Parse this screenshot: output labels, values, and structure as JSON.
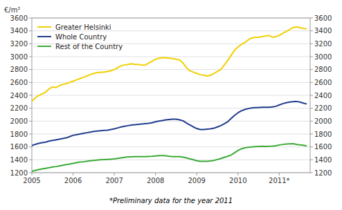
{
  "chart_data": {
    "type": "line",
    "y_label": "€/m²",
    "annotations": [
      "*Preliminary data for the year 2011"
    ],
    "xlim": [
      2005.0,
      2011.75
    ],
    "ylim": [
      1200,
      3600
    ],
    "yticks": [
      1200,
      1400,
      1600,
      1800,
      2000,
      2200,
      2400,
      2600,
      2800,
      3000,
      3200,
      3400,
      3600
    ],
    "y2lim": [
      1200,
      3600
    ],
    "y2ticks": [
      1200,
      1400,
      1600,
      1800,
      2000,
      2200,
      2400,
      2600,
      2800,
      3000,
      3200,
      3400,
      3600
    ],
    "xticks": [
      2005,
      2006,
      2007,
      2008,
      2009,
      2010,
      {
        "value": 2011,
        "label": "2011*"
      }
    ],
    "grid": true,
    "legend": "upper left",
    "x": [
      2005.0,
      2005.083,
      2005.167,
      2005.25,
      2005.333,
      2005.417,
      2005.5,
      2005.583,
      2005.667,
      2005.75,
      2005.833,
      2005.917,
      2006.0,
      2006.083,
      2006.167,
      2006.25,
      2006.333,
      2006.417,
      2006.5,
      2006.583,
      2006.667,
      2006.75,
      2006.833,
      2006.917,
      2007.0,
      2007.083,
      2007.167,
      2007.25,
      2007.333,
      2007.417,
      2007.5,
      2007.583,
      2007.667,
      2007.75,
      2007.833,
      2007.917,
      2008.0,
      2008.083,
      2008.167,
      2008.25,
      2008.333,
      2008.417,
      2008.5,
      2008.583,
      2008.667,
      2008.75,
      2008.833,
      2008.917,
      2009.0,
      2009.083,
      2009.167,
      2009.25,
      2009.333,
      2009.417,
      2009.5,
      2009.583,
      2009.667,
      2009.75,
      2009.833,
      2009.917,
      2010.0,
      2010.083,
      2010.167,
      2010.25,
      2010.333,
      2010.417,
      2010.5,
      2010.583,
      2010.667,
      2010.75,
      2010.833,
      2010.917,
      2011.0,
      2011.083,
      2011.167,
      2011.25,
      2011.333,
      2011.417,
      2011.5,
      2011.583,
      2011.667
    ],
    "series": [
      {
        "name": "Greater Helsinki",
        "color": "#f0d000",
        "values": [
          2310,
          2360,
          2400,
          2420,
          2450,
          2500,
          2530,
          2520,
          2550,
          2570,
          2580,
          2600,
          2620,
          2640,
          2660,
          2680,
          2700,
          2720,
          2740,
          2750,
          2760,
          2760,
          2770,
          2780,
          2800,
          2830,
          2860,
          2870,
          2880,
          2890,
          2880,
          2880,
          2870,
          2870,
          2900,
          2930,
          2960,
          2975,
          2985,
          2980,
          2975,
          2970,
          2960,
          2950,
          2900,
          2830,
          2780,
          2760,
          2740,
          2720,
          2710,
          2700,
          2710,
          2740,
          2770,
          2800,
          2870,
          2940,
          3020,
          3100,
          3150,
          3190,
          3220,
          3260,
          3290,
          3300,
          3300,
          3310,
          3320,
          3330,
          3300,
          3310,
          3330,
          3360,
          3390,
          3420,
          3450,
          3460,
          3450,
          3440,
          3430
        ]
      },
      {
        "name": "Whole Country",
        "color": "#1f3c8c",
        "values": [
          1620,
          1640,
          1655,
          1665,
          1675,
          1690,
          1700,
          1710,
          1720,
          1730,
          1740,
          1760,
          1780,
          1790,
          1800,
          1810,
          1820,
          1830,
          1840,
          1845,
          1850,
          1855,
          1860,
          1870,
          1880,
          1895,
          1910,
          1920,
          1930,
          1940,
          1945,
          1950,
          1955,
          1960,
          1965,
          1975,
          1990,
          2000,
          2010,
          2020,
          2025,
          2030,
          2030,
          2020,
          2005,
          1970,
          1940,
          1910,
          1885,
          1870,
          1870,
          1875,
          1880,
          1890,
          1910,
          1930,
          1960,
          1990,
          2040,
          2090,
          2130,
          2160,
          2180,
          2195,
          2205,
          2210,
          2210,
          2215,
          2215,
          2215,
          2220,
          2230,
          2250,
          2270,
          2285,
          2295,
          2300,
          2305,
          2295,
          2280,
          2265
        ]
      },
      {
        "name": "Rest of the Country",
        "color": "#3aaa35",
        "values": [
          1220,
          1235,
          1248,
          1258,
          1268,
          1278,
          1288,
          1295,
          1305,
          1315,
          1325,
          1335,
          1345,
          1355,
          1365,
          1370,
          1378,
          1385,
          1390,
          1395,
          1400,
          1403,
          1406,
          1410,
          1415,
          1422,
          1430,
          1438,
          1445,
          1447,
          1448,
          1450,
          1450,
          1450,
          1452,
          1455,
          1460,
          1465,
          1465,
          1462,
          1455,
          1450,
          1450,
          1448,
          1440,
          1430,
          1415,
          1400,
          1385,
          1378,
          1376,
          1378,
          1382,
          1390,
          1405,
          1420,
          1438,
          1455,
          1475,
          1510,
          1545,
          1570,
          1585,
          1595,
          1600,
          1605,
          1608,
          1610,
          1608,
          1610,
          1612,
          1618,
          1630,
          1638,
          1645,
          1648,
          1650,
          1640,
          1630,
          1625,
          1615
        ]
      }
    ]
  }
}
